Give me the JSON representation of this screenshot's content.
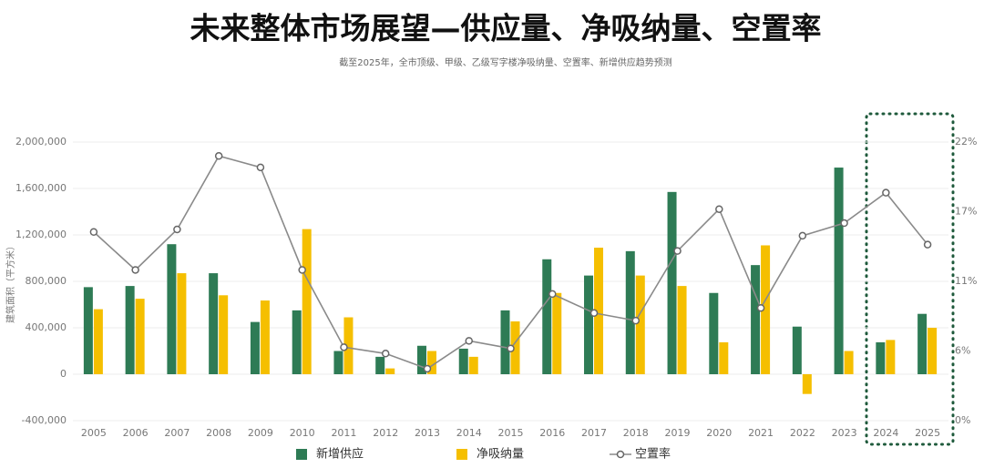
{
  "chart_data": {
    "type": "bar",
    "title": "未来整体市场展望—供应量、净吸纳量、空置率",
    "subtitle": "截至2025年，全市顶级、甲级、乙级写字楼净吸纳量、空置率、新增供应趋势预测",
    "y_label": "建筑面积（平方米）",
    "categories": [
      "2005",
      "2006",
      "2007",
      "2008",
      "2009",
      "2010",
      "2011",
      "2012",
      "2013",
      "2014",
      "2015",
      "2016",
      "2017",
      "2018",
      "2019",
      "2020",
      "2021",
      "2022",
      "2023",
      "2024",
      "2025"
    ],
    "series": [
      {
        "name": "新增供应",
        "color": "#2e7b55",
        "values": [
          750000,
          760000,
          1120000,
          870000,
          450000,
          550000,
          200000,
          150000,
          245000,
          220000,
          550000,
          990000,
          850000,
          1060000,
          1570000,
          700000,
          940000,
          410000,
          1780000,
          275000,
          520000
        ]
      },
      {
        "name": "净吸纳量",
        "color": "#f5bf00",
        "values": [
          560000,
          650000,
          870000,
          680000,
          635000,
          1250000,
          490000,
          50000,
          200000,
          150000,
          455000,
          700000,
          1090000,
          850000,
          760000,
          275000,
          1110000,
          -170000,
          200000,
          295000,
          400000
        ]
      },
      {
        "name": "空置率",
        "type": "line",
        "axis": "y2",
        "color": "#8a8a8a",
        "values": [
          14.9,
          11.9,
          15.1,
          20.9,
          20.0,
          11.9,
          5.8,
          5.3,
          4.1,
          6.3,
          5.7,
          10.0,
          8.5,
          7.9,
          13.4,
          16.7,
          8.9,
          14.6,
          15.6,
          18.0,
          13.9
        ]
      }
    ],
    "ylim": [
      -400000,
      2000000
    ],
    "yticks": [
      {
        "value": -400000,
        "label": "-400,000"
      },
      0,
      {
        "value": 400000,
        "label": "400,000"
      },
      {
        "value": 800000,
        "label": "800,000"
      },
      {
        "value": 1200000,
        "label": "1,200,000"
      },
      {
        "value": 1600000,
        "label": "1,600,000"
      },
      {
        "value": 2000000,
        "label": "2,000,000"
      }
    ],
    "y2lim": [
      0,
      22
    ],
    "y2ticks": [
      {
        "value": 0,
        "label": "0%"
      },
      {
        "value": 5.5,
        "label": "6%"
      },
      {
        "value": 11,
        "label": "11%"
      },
      {
        "value": 16.5,
        "label": "17%"
      },
      {
        "value": 22,
        "label": "22%"
      }
    ],
    "grid": true
  }
}
